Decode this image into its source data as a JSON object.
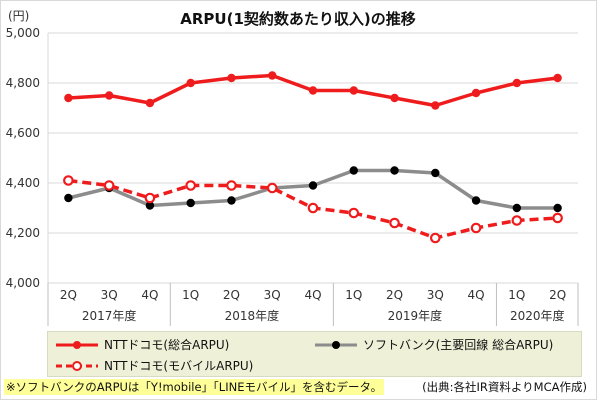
{
  "chart_data": {
    "type": "line",
    "title": "ARPU(1契約数あたり収入)の推移",
    "ylabel": "(円)",
    "ylim": [
      4000,
      5000
    ],
    "yticks": [
      "4,000",
      "4,200",
      "4,400",
      "4,600",
      "4,800",
      "5,000"
    ],
    "categories": [
      "2Q",
      "3Q",
      "4Q",
      "1Q",
      "2Q",
      "3Q",
      "4Q",
      "1Q",
      "2Q",
      "3Q",
      "4Q",
      "1Q",
      "2Q"
    ],
    "year_groups": [
      {
        "label": "2017年度",
        "start": 0,
        "end": 2
      },
      {
        "label": "2018年度",
        "start": 3,
        "end": 6
      },
      {
        "label": "2019年度",
        "start": 7,
        "end": 10
      },
      {
        "label": "2020年度",
        "start": 11,
        "end": 12
      }
    ],
    "series": [
      {
        "name": "NTTドコモ(総合ARPU)",
        "color": "#ee1c1c",
        "dashed": false,
        "open_markers": false,
        "values": [
          4740,
          4750,
          4720,
          4800,
          4820,
          4830,
          4770,
          4770,
          4740,
          4710,
          4760,
          4800,
          4820
        ]
      },
      {
        "name": "ソフトバンク(主要回線 総合ARPU)",
        "color": "#8c8c8c",
        "marker_color": "#000000",
        "dashed": false,
        "open_markers": false,
        "values": [
          4340,
          4380,
          4310,
          4320,
          4330,
          4380,
          4390,
          4450,
          4450,
          4440,
          4330,
          4300,
          4300
        ]
      },
      {
        "name": "NTTドコモ(モバイルARPU)",
        "color": "#ee1c1c",
        "dashed": true,
        "open_markers": true,
        "values": [
          4410,
          4390,
          4340,
          4390,
          4390,
          4380,
          4300,
          4280,
          4240,
          4180,
          4220,
          4250,
          4260
        ]
      }
    ],
    "grid": true,
    "legend_position": "bottom"
  },
  "legend": {
    "item0": "NTTドコモ(総合ARPU)",
    "item1": "ソフトバンク(主要回線 総合ARPU)",
    "item2": "NTTドコモ(モバイルARPU)"
  },
  "note": "※ソフトバンクのARPUは「Y!mobile」「LINEモバイル」を含むデータ。",
  "source": "(出典:各社IR資料よりMCA作成)"
}
